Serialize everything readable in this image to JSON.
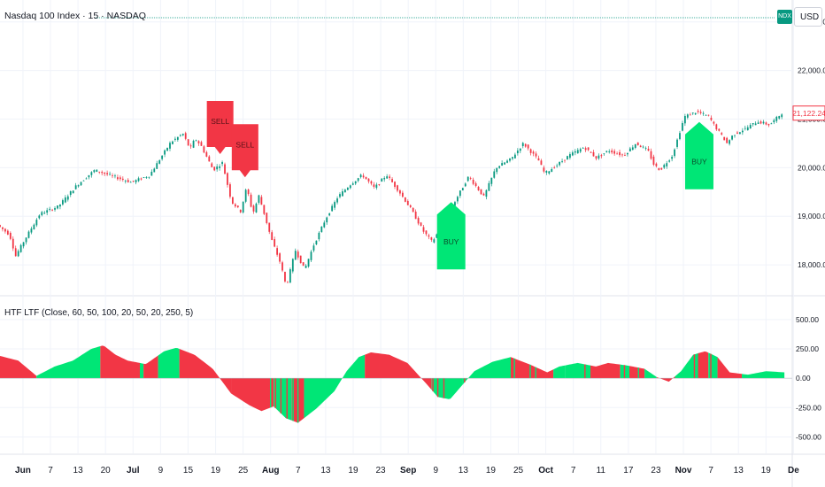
{
  "header": {
    "title": "Nasdaq 100 Index · 15 · NASDAQ",
    "symbol_badge": "NDX",
    "currency": "USD"
  },
  "indicator": {
    "title": "HTF LTF (Close, 60, 50, 100, 20, 50, 20, 250, 5)"
  },
  "colors": {
    "bull": "#00e676",
    "bear": "#f23645",
    "price_label": "#f23645",
    "dotted_line": "#089981"
  },
  "chart_data": [
    {
      "type": "candlestick",
      "title": "Nasdaq 100 Index · 15 · NASDAQ",
      "price_axis": {
        "ylim": [
          17400,
          23450
        ],
        "ticks": [
          "23,000.00",
          "22,000.00",
          "21,000.00",
          "20,000.00",
          "19,000.00",
          "18,000.00"
        ],
        "tick_values": [
          23000,
          22000,
          21000,
          20000,
          19000,
          18000
        ],
        "last_price_label": "21,122.24",
        "last_price": 21122.24
      },
      "time_axis": {
        "labels": [
          "Jun",
          "7",
          "13",
          "20",
          "Jul",
          "9",
          "15",
          "19",
          "25",
          "Aug",
          "7",
          "13",
          "19",
          "23",
          "Sep",
          "9",
          "13",
          "19",
          "25",
          "Oct",
          "7",
          "11",
          "17",
          "23",
          "Nov",
          "7",
          "13",
          "19",
          "De"
        ],
        "bold": [
          "Jun",
          "Jul",
          "Aug",
          "Sep",
          "Oct",
          "Nov",
          "De"
        ]
      },
      "price_path": [
        {
          "t": 0.0,
          "v": 18820
        },
        {
          "t": 2.0,
          "v": 18620
        },
        {
          "t": 3.0,
          "v": 18180
        },
        {
          "t": 4.5,
          "v": 18520
        },
        {
          "t": 7.0,
          "v": 19050
        },
        {
          "t": 10.0,
          "v": 19200
        },
        {
          "t": 13.0,
          "v": 19630
        },
        {
          "t": 16.0,
          "v": 19950
        },
        {
          "t": 19.0,
          "v": 19820
        },
        {
          "t": 22.0,
          "v": 19700
        },
        {
          "t": 25.0,
          "v": 19840
        },
        {
          "t": 28.5,
          "v": 20520
        },
        {
          "t": 30.5,
          "v": 20700
        },
        {
          "t": 31.7,
          "v": 20380
        },
        {
          "t": 32.5,
          "v": 20600
        },
        {
          "t": 33.5,
          "v": 20450
        },
        {
          "t": 35.5,
          "v": 19950
        },
        {
          "t": 37.0,
          "v": 20100
        },
        {
          "t": 38.5,
          "v": 19300
        },
        {
          "t": 40.0,
          "v": 19100
        },
        {
          "t": 41.0,
          "v": 19600
        },
        {
          "t": 42.0,
          "v": 19050
        },
        {
          "t": 43.0,
          "v": 19420
        },
        {
          "t": 44.0,
          "v": 19000
        },
        {
          "t": 45.0,
          "v": 18550
        },
        {
          "t": 46.5,
          "v": 18050
        },
        {
          "t": 47.5,
          "v": 17550
        },
        {
          "t": 49.0,
          "v": 18300
        },
        {
          "t": 50.5,
          "v": 17900
        },
        {
          "t": 52.0,
          "v": 18400
        },
        {
          "t": 54.0,
          "v": 18950
        },
        {
          "t": 56.0,
          "v": 19400
        },
        {
          "t": 58.0,
          "v": 19650
        },
        {
          "t": 60.0,
          "v": 19850
        },
        {
          "t": 62.0,
          "v": 19580
        },
        {
          "t": 64.0,
          "v": 19850
        },
        {
          "t": 66.0,
          "v": 19520
        },
        {
          "t": 68.0,
          "v": 19150
        },
        {
          "t": 70.0,
          "v": 18700
        },
        {
          "t": 71.5,
          "v": 18470
        },
        {
          "t": 73.0,
          "v": 18780
        },
        {
          "t": 75.0,
          "v": 19250
        },
        {
          "t": 77.5,
          "v": 19820
        },
        {
          "t": 80.0,
          "v": 19400
        },
        {
          "t": 82.0,
          "v": 20000
        },
        {
          "t": 84.5,
          "v": 20180
        },
        {
          "t": 86.5,
          "v": 20500
        },
        {
          "t": 89.0,
          "v": 20150
        },
        {
          "t": 90.0,
          "v": 19880
        },
        {
          "t": 92.0,
          "v": 20050
        },
        {
          "t": 94.0,
          "v": 20250
        },
        {
          "t": 96.5,
          "v": 20420
        },
        {
          "t": 98.5,
          "v": 20200
        },
        {
          "t": 100.5,
          "v": 20350
        },
        {
          "t": 103.0,
          "v": 20250
        },
        {
          "t": 105.0,
          "v": 20500
        },
        {
          "t": 107.0,
          "v": 20350
        },
        {
          "t": 108.0,
          "v": 20050
        },
        {
          "t": 109.0,
          "v": 19950
        },
        {
          "t": 111.0,
          "v": 20250
        },
        {
          "t": 112.0,
          "v": 20650
        },
        {
          "t": 113.0,
          "v": 21050
        },
        {
          "t": 115.0,
          "v": 21150
        },
        {
          "t": 117.0,
          "v": 21050
        },
        {
          "t": 118.0,
          "v": 20850
        },
        {
          "t": 119.0,
          "v": 20680
        },
        {
          "t": 120.0,
          "v": 20500
        },
        {
          "t": 121.0,
          "v": 20680
        },
        {
          "t": 123.0,
          "v": 20800
        },
        {
          "t": 125.0,
          "v": 20950
        },
        {
          "t": 127.0,
          "v": 20880
        },
        {
          "t": 129.0,
          "v": 21122
        }
      ],
      "signals": [
        {
          "label": "SELL",
          "type": "sell",
          "t": 36.2,
          "price": 20280
        },
        {
          "label": "SELL",
          "type": "sell",
          "t": 40.3,
          "price": 19800
        },
        {
          "label": "BUY",
          "type": "buy",
          "t": 74.2,
          "price": 19400
        },
        {
          "label": "BUY",
          "type": "buy",
          "t": 115.0,
          "price": 21050
        }
      ]
    },
    {
      "type": "histogram",
      "title": "HTF LTF (Close, 60, 50, 100, 20, 50, 20, 250, 5)",
      "value_axis": {
        "ylim": [
          -640,
          680
        ],
        "ticks": [
          "500.00",
          "250.00",
          "0.00",
          "-250.00",
          "-500.00"
        ],
        "tick_values": [
          500,
          250,
          0,
          -250,
          -500
        ]
      },
      "curve": [
        {
          "t": 0,
          "v": 190
        },
        {
          "t": 3,
          "v": 150
        },
        {
          "t": 6,
          "v": 20
        },
        {
          "t": 9,
          "v": 100
        },
        {
          "t": 12,
          "v": 150
        },
        {
          "t": 15,
          "v": 250
        },
        {
          "t": 17,
          "v": 280
        },
        {
          "t": 19,
          "v": 200
        },
        {
          "t": 21,
          "v": 150
        },
        {
          "t": 24,
          "v": 120
        },
        {
          "t": 27,
          "v": 230
        },
        {
          "t": 29,
          "v": 260
        },
        {
          "t": 32,
          "v": 200
        },
        {
          "t": 35,
          "v": 80
        },
        {
          "t": 38,
          "v": -130
        },
        {
          "t": 41,
          "v": -230
        },
        {
          "t": 43,
          "v": -280
        },
        {
          "t": 45,
          "v": -240
        },
        {
          "t": 47,
          "v": -340
        },
        {
          "t": 49,
          "v": -380
        },
        {
          "t": 52,
          "v": -260
        },
        {
          "t": 55,
          "v": -110
        },
        {
          "t": 57,
          "v": 60
        },
        {
          "t": 59,
          "v": 180
        },
        {
          "t": 61,
          "v": 220
        },
        {
          "t": 64,
          "v": 200
        },
        {
          "t": 67,
          "v": 130
        },
        {
          "t": 70,
          "v": -40
        },
        {
          "t": 72,
          "v": -160
        },
        {
          "t": 74,
          "v": -180
        },
        {
          "t": 76,
          "v": -60
        },
        {
          "t": 78,
          "v": 60
        },
        {
          "t": 81,
          "v": 140
        },
        {
          "t": 84,
          "v": 180
        },
        {
          "t": 87,
          "v": 120
        },
        {
          "t": 90,
          "v": 50
        },
        {
          "t": 92,
          "v": 100
        },
        {
          "t": 95,
          "v": 130
        },
        {
          "t": 98,
          "v": 100
        },
        {
          "t": 100,
          "v": 130
        },
        {
          "t": 103,
          "v": 110
        },
        {
          "t": 106,
          "v": 80
        },
        {
          "t": 108,
          "v": 10
        },
        {
          "t": 110,
          "v": -30
        },
        {
          "t": 112,
          "v": 60
        },
        {
          "t": 114,
          "v": 200
        },
        {
          "t": 116,
          "v": 230
        },
        {
          "t": 118,
          "v": 180
        },
        {
          "t": 120,
          "v": 50
        },
        {
          "t": 123,
          "v": 30
        },
        {
          "t": 126,
          "v": 60
        },
        {
          "t": 129,
          "v": 50
        }
      ],
      "color_segments": [
        {
          "from": 0,
          "to": 6,
          "color": "bear"
        },
        {
          "from": 6,
          "to": 16.5,
          "color": "bull"
        },
        {
          "from": 16.5,
          "to": 23,
          "color": "bear"
        },
        {
          "from": 23,
          "to": 23.6,
          "color": "bull"
        },
        {
          "from": 23.6,
          "to": 26,
          "color": "bear"
        },
        {
          "from": 26,
          "to": 29.5,
          "color": "bull"
        },
        {
          "from": 29.5,
          "to": 38,
          "color": "bear"
        },
        {
          "from": 38,
          "to": 45,
          "color": "bear"
        },
        {
          "from": 45,
          "to": 48,
          "color": "bull"
        },
        {
          "from": 48,
          "to": 50,
          "color": "bear"
        },
        {
          "from": 50,
          "to": 60,
          "color": "bull"
        },
        {
          "from": 60,
          "to": 71,
          "color": "bear"
        },
        {
          "from": 71,
          "to": 72.5,
          "color": "bull"
        },
        {
          "from": 72.5,
          "to": 76,
          "color": "bull"
        },
        {
          "from": 76,
          "to": 84,
          "color": "bull"
        },
        {
          "from": 84,
          "to": 91,
          "color": "bear"
        },
        {
          "from": 91,
          "to": 93,
          "color": "bull"
        },
        {
          "from": 93,
          "to": 97,
          "color": "bull"
        },
        {
          "from": 97,
          "to": 102,
          "color": "bear"
        },
        {
          "from": 102,
          "to": 103.5,
          "color": "bull"
        },
        {
          "from": 103.5,
          "to": 106,
          "color": "bear"
        },
        {
          "from": 106,
          "to": 108,
          "color": "bull"
        },
        {
          "from": 108,
          "to": 111,
          "color": "bear"
        },
        {
          "from": 111,
          "to": 115,
          "color": "bull"
        },
        {
          "from": 115,
          "to": 116.5,
          "color": "bear"
        },
        {
          "from": 116.5,
          "to": 118,
          "color": "bull"
        },
        {
          "from": 118,
          "to": 122,
          "color": "bear"
        },
        {
          "from": 122,
          "to": 129,
          "color": "bull"
        }
      ],
      "stripes": [
        44.5,
        45.3,
        46.2,
        47.2,
        48.2,
        49.0,
        71.2,
        72.0,
        73.0,
        76.4,
        84.6,
        87.2,
        88.1,
        96.2,
        97.0,
        102.7,
        105.0,
        114.2,
        114.9,
        116.9
      ]
    }
  ]
}
